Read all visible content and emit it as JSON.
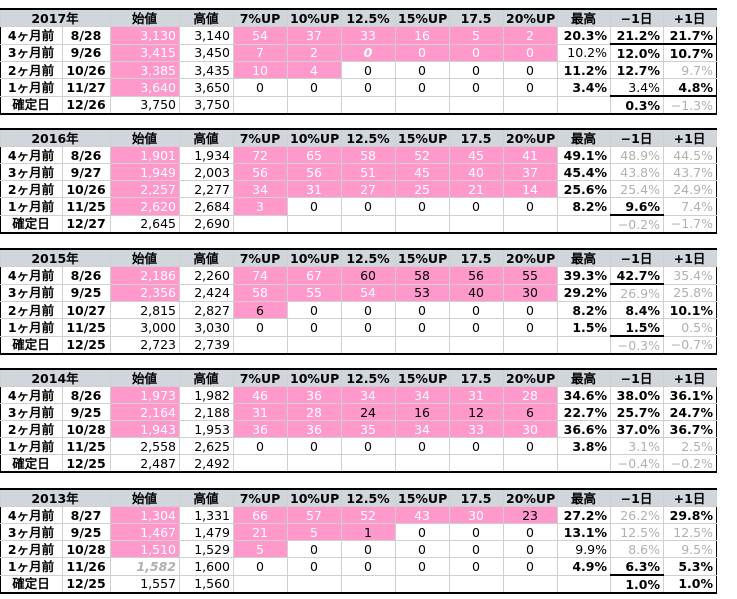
{
  "headers": [
    "始値",
    "高値",
    "7%UP",
    "10%UP",
    "12.5%",
    "15%UP",
    "17.5",
    "20%UP",
    "最高",
    "−1日",
    "+1日"
  ],
  "blocks": [
    {
      "year": "2017年",
      "rows": [
        {
          "label": "4ヶ月前",
          "date": "8/28",
          "open": "3,130",
          "high": "3,140",
          "c": [
            "54",
            "37",
            "33",
            "16",
            "5",
            "2"
          ],
          "max": "20.3%",
          "m1": "21.2%",
          "p1": "21.7%"
        },
        {
          "label": "3ヶ月前",
          "date": "9/26",
          "open": "3,415",
          "high": "3,450",
          "c": [
            "7",
            "2",
            "0",
            "0",
            "0",
            "0"
          ],
          "max": "10.2%",
          "m1": "12.0%",
          "p1": "10.7%"
        },
        {
          "label": "2ヶ月前",
          "date": "10/26",
          "open": "3,385",
          "high": "3,435",
          "c": [
            "10",
            "4",
            "0",
            "0",
            "0",
            "0"
          ],
          "max": "11.2%",
          "m1": "12.7%",
          "p1": "9.7%"
        },
        {
          "label": "1ヶ月前",
          "date": "11/27",
          "open": "3,640",
          "high": "3,650",
          "c": [
            "0",
            "0",
            "0",
            "0",
            "0",
            "0"
          ],
          "max": "3.4%",
          "m1": "3.4%",
          "p1": "4.8%"
        },
        {
          "label": "確定日",
          "date": "12/26",
          "open": "3,750",
          "high": "3,750",
          "c": [
            "",
            "",
            "",
            "",
            "",
            ""
          ],
          "max": "",
          "m1": "0.3%",
          "p1": "−1.3%"
        }
      ]
    },
    {
      "year": "2016年",
      "rows": [
        {
          "label": "4ヶ月前",
          "date": "8/26",
          "open": "1,901",
          "high": "1,934",
          "c": [
            "72",
            "65",
            "58",
            "52",
            "45",
            "41"
          ],
          "max": "49.1%",
          "m1": "48.9%",
          "p1": "44.5%"
        },
        {
          "label": "3ヶ月前",
          "date": "9/27",
          "open": "1,949",
          "high": "2,003",
          "c": [
            "56",
            "56",
            "51",
            "45",
            "40",
            "37"
          ],
          "max": "45.4%",
          "m1": "43.8%",
          "p1": "43.7%"
        },
        {
          "label": "2ヶ月前",
          "date": "10/26",
          "open": "2,257",
          "high": "2,277",
          "c": [
            "34",
            "31",
            "27",
            "25",
            "21",
            "14"
          ],
          "max": "25.6%",
          "m1": "25.4%",
          "p1": "24.9%"
        },
        {
          "label": "1ヶ月前",
          "date": "11/25",
          "open": "2,620",
          "high": "2,684",
          "c": [
            "3",
            "0",
            "0",
            "0",
            "0",
            "0"
          ],
          "max": "8.2%",
          "m1": "9.6%",
          "p1": "7.4%"
        },
        {
          "label": "確定日",
          "date": "12/27",
          "open": "2,645",
          "high": "2,690",
          "c": [
            "",
            "",
            "",
            "",
            "",
            ""
          ],
          "max": "",
          "m1": "−0.2%",
          "p1": "−1.7%"
        }
      ]
    },
    {
      "year": "2015年",
      "rows": [
        {
          "label": "4ヶ月前",
          "date": "8/26",
          "open": "2,186",
          "high": "2,260",
          "c": [
            "74",
            "67",
            "60",
            "58",
            "56",
            "55"
          ],
          "max": "39.3%",
          "m1": "42.7%",
          "p1": "35.4%"
        },
        {
          "label": "3ヶ月前",
          "date": "9/25",
          "open": "2,356",
          "high": "2,424",
          "c": [
            "58",
            "55",
            "54",
            "53",
            "40",
            "30"
          ],
          "max": "29.2%",
          "m1": "26.9%",
          "p1": "25.8%"
        },
        {
          "label": "2ヶ月前",
          "date": "10/27",
          "open": "2,815",
          "high": "2,827",
          "c": [
            "6",
            "0",
            "0",
            "0",
            "0",
            "0"
          ],
          "max": "8.2%",
          "m1": "8.4%",
          "p1": "10.1%"
        },
        {
          "label": "1ヶ月前",
          "date": "11/25",
          "open": "3,000",
          "high": "3,030",
          "c": [
            "0",
            "0",
            "0",
            "0",
            "0",
            "0"
          ],
          "max": "1.5%",
          "m1": "1.5%",
          "p1": "0.5%"
        },
        {
          "label": "確定日",
          "date": "12/25",
          "open": "2,723",
          "high": "2,739",
          "c": [
            "",
            "",
            "",
            "",
            "",
            ""
          ],
          "max": "",
          "m1": "−0.3%",
          "p1": "−0.7%"
        }
      ]
    },
    {
      "year": "2014年",
      "rows": [
        {
          "label": "4ヶ月前",
          "date": "8/26",
          "open": "1,973",
          "high": "1,982",
          "c": [
            "46",
            "36",
            "34",
            "34",
            "31",
            "28"
          ],
          "max": "34.6%",
          "m1": "38.0%",
          "p1": "36.1%"
        },
        {
          "label": "3ヶ月前",
          "date": "9/25",
          "open": "2,164",
          "high": "2,188",
          "c": [
            "31",
            "28",
            "24",
            "16",
            "12",
            "6"
          ],
          "max": "22.7%",
          "m1": "25.7%",
          "p1": "24.7%"
        },
        {
          "label": "2ヶ月前",
          "date": "10/28",
          "open": "1,943",
          "high": "1,953",
          "c": [
            "36",
            "36",
            "35",
            "34",
            "33",
            "30"
          ],
          "max": "36.6%",
          "m1": "37.0%",
          "p1": "36.7%"
        },
        {
          "label": "1ヶ月前",
          "date": "11/25",
          "open": "2,558",
          "high": "2,625",
          "c": [
            "0",
            "0",
            "0",
            "0",
            "0",
            "0"
          ],
          "max": "3.8%",
          "m1": "3.1%",
          "p1": "2.5%"
        },
        {
          "label": "確定日",
          "date": "12/25",
          "open": "2,487",
          "high": "2,492",
          "c": [
            "",
            "",
            "",
            "",
            "",
            ""
          ],
          "max": "",
          "m1": "−0.4%",
          "p1": "−0.2%"
        }
      ]
    },
    {
      "year": "2013年",
      "rows": [
        {
          "label": "4ヶ月前",
          "date": "8/27",
          "open": "1,304",
          "high": "1,331",
          "c": [
            "66",
            "57",
            "52",
            "43",
            "30",
            "23"
          ],
          "max": "27.2%",
          "m1": "26.2%",
          "p1": "29.8%"
        },
        {
          "label": "3ヶ月前",
          "date": "9/25",
          "open": "1,467",
          "high": "1,479",
          "c": [
            "21",
            "5",
            "1",
            "0",
            "0",
            "0"
          ],
          "max": "13.1%",
          "m1": "12.5%",
          "p1": "12.5%"
        },
        {
          "label": "2ヶ月前",
          "date": "10/28",
          "open": "1,510",
          "high": "1,529",
          "c": [
            "5",
            "0",
            "0",
            "0",
            "0",
            "0"
          ],
          "max": "9.9%",
          "m1": "8.6%",
          "p1": "9.5%"
        },
        {
          "label": "1ヶ月前",
          "date": "11/26",
          "open": "1,582",
          "high": "1,600",
          "c": [
            "0",
            "0",
            "0",
            "0",
            "0",
            "0"
          ],
          "max": "4.9%",
          "m1": "6.3%",
          "p1": "5.3%"
        },
        {
          "label": "確定日",
          "date": "12/25",
          "open": "1,557",
          "high": "1,560",
          "c": [
            "",
            "",
            "",
            "",
            "",
            ""
          ],
          "max": "",
          "m1": "1.0%",
          "p1": "1.0%"
        }
      ]
    }
  ]
}
